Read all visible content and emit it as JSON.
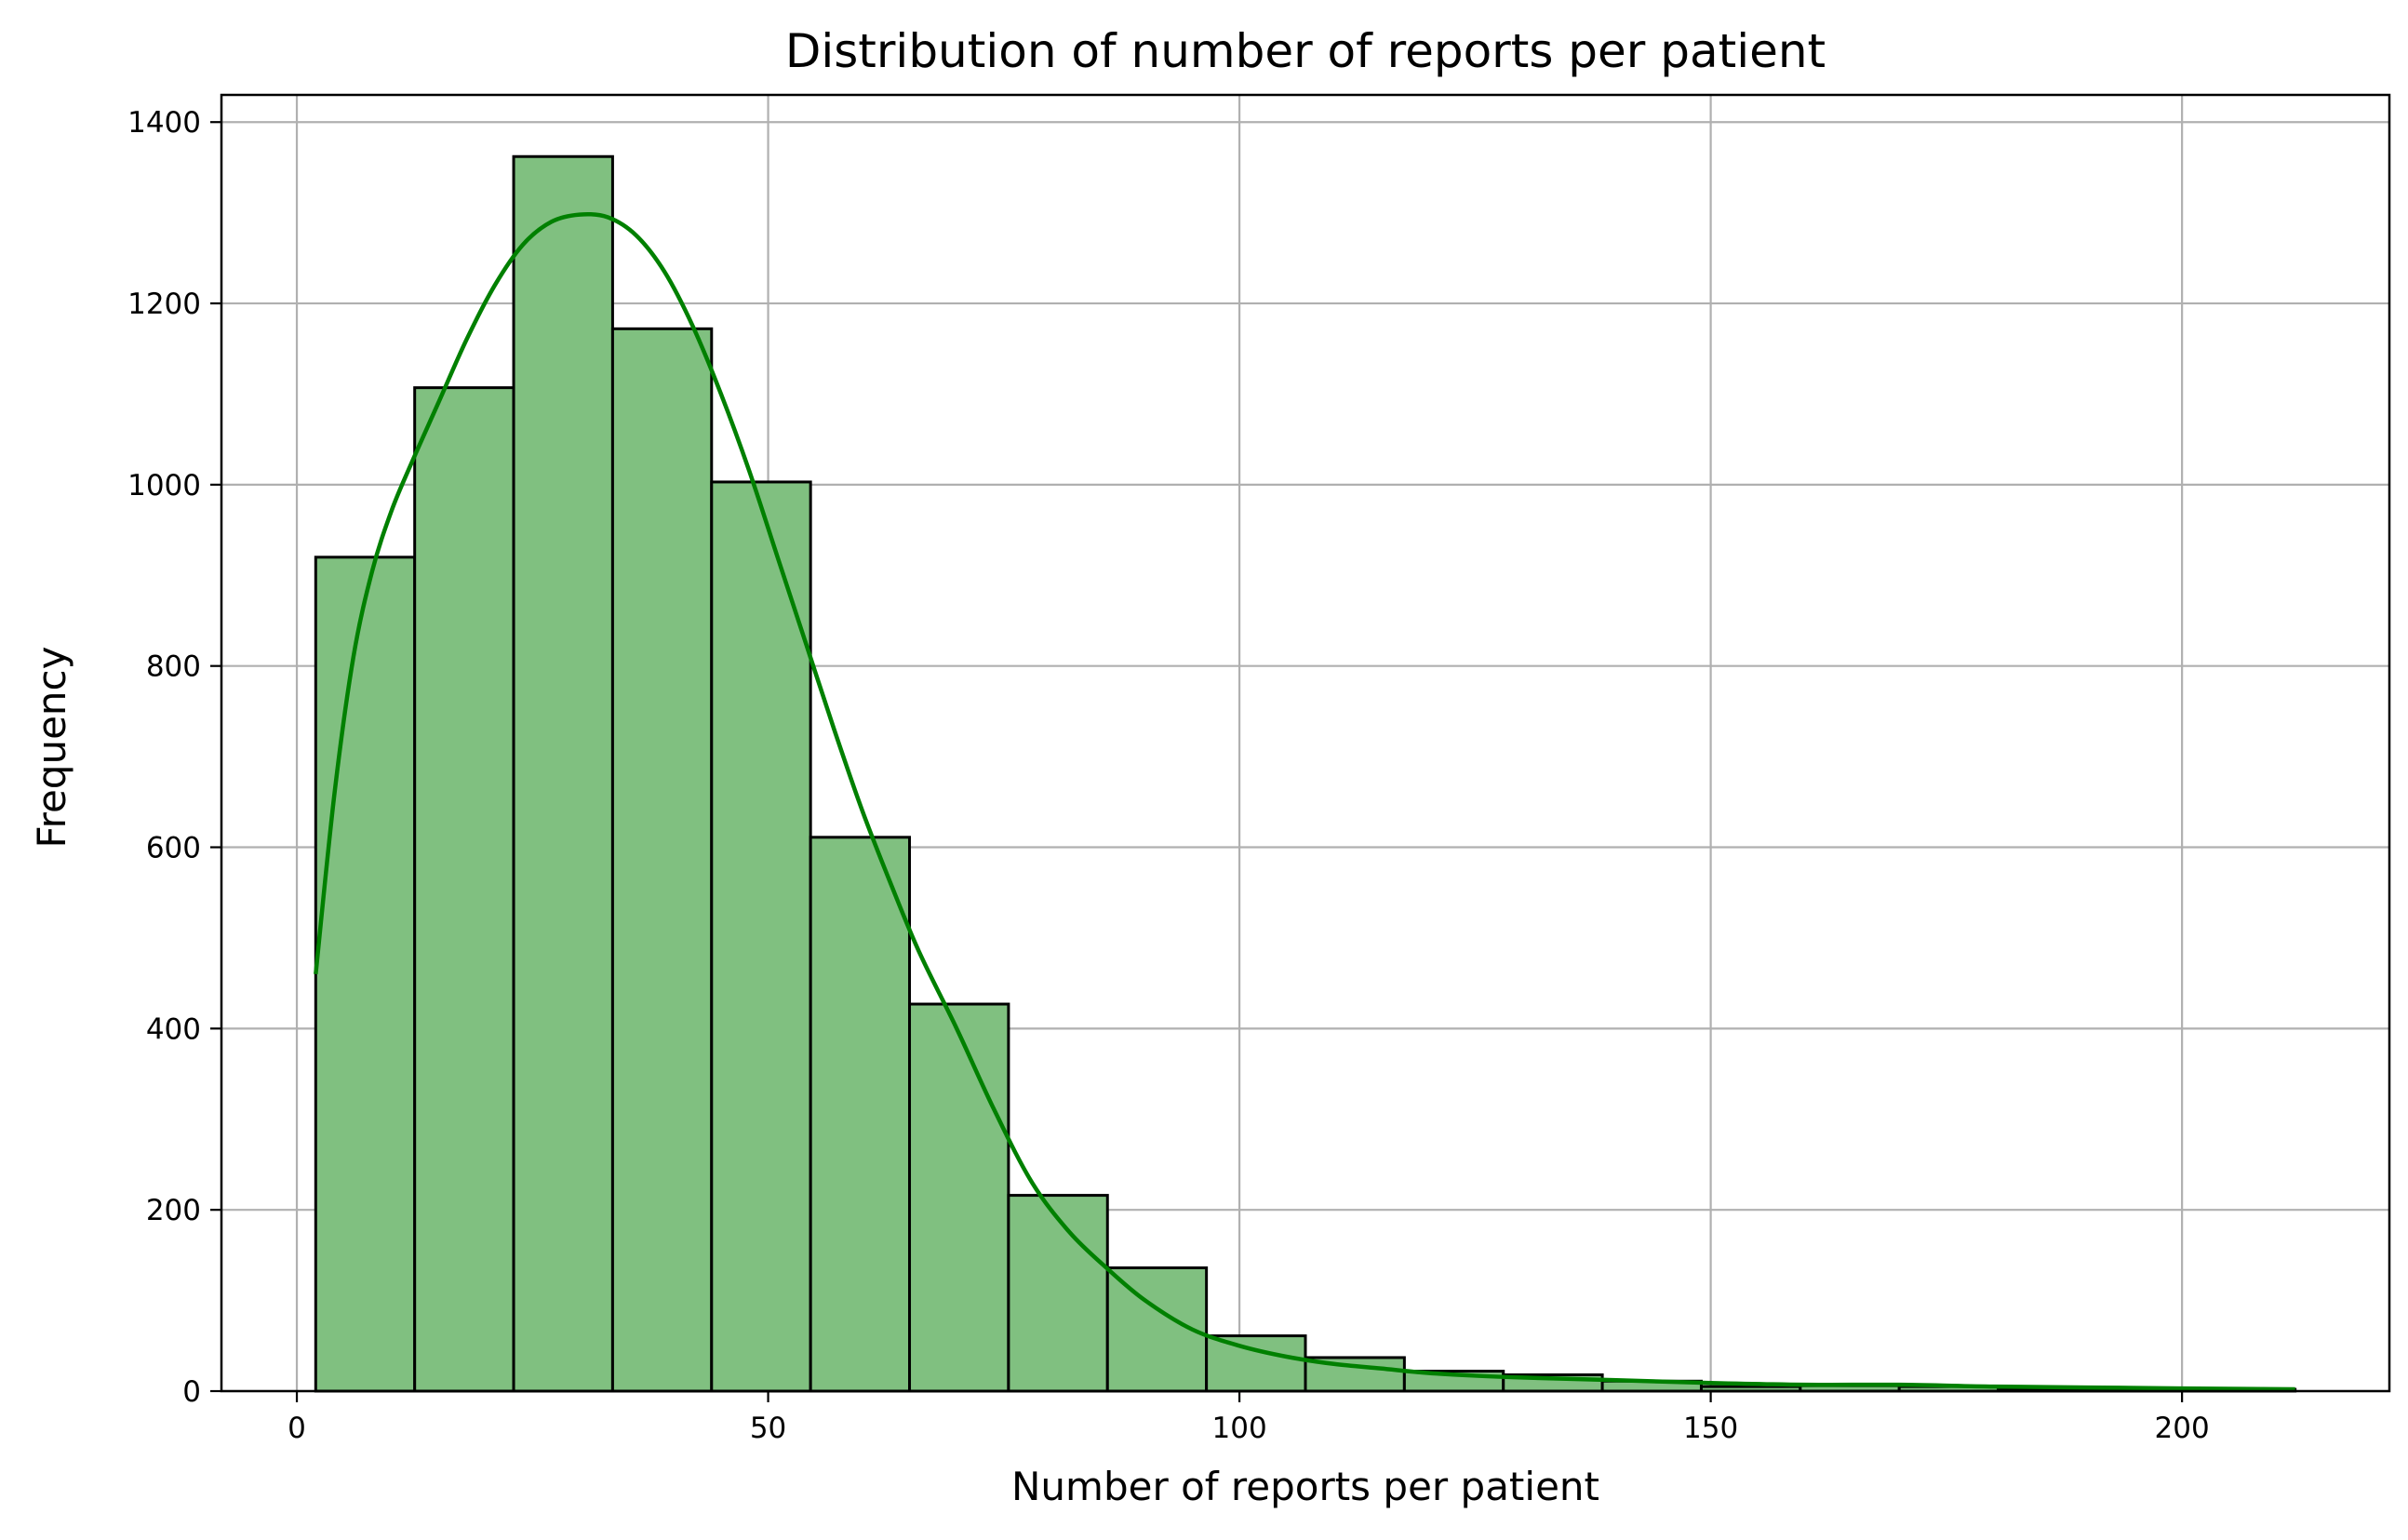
{
  "chart_data": {
    "type": "bar",
    "title": "Distribution of number of reports per patient",
    "xlabel": "Number of reports per patient",
    "ylabel": "Frequency",
    "xlim": [
      -8,
      222
    ],
    "ylim": [
      0,
      1430
    ],
    "x_ticks": [
      0,
      50,
      100,
      150,
      200
    ],
    "y_ticks": [
      0,
      200,
      400,
      600,
      800,
      1000,
      1200,
      1400
    ],
    "grid": true,
    "bars": [
      {
        "x0": 2.0,
        "x1": 12.5,
        "value": 920
      },
      {
        "x0": 12.5,
        "x1": 23.0,
        "value": 1107
      },
      {
        "x0": 23.0,
        "x1": 33.5,
        "value": 1362
      },
      {
        "x0": 33.5,
        "x1": 44.0,
        "value": 1172
      },
      {
        "x0": 44.0,
        "x1": 54.5,
        "value": 1003
      },
      {
        "x0": 54.5,
        "x1": 65.0,
        "value": 611
      },
      {
        "x0": 65.0,
        "x1": 75.5,
        "value": 427
      },
      {
        "x0": 75.5,
        "x1": 86.0,
        "value": 216
      },
      {
        "x0": 86.0,
        "x1": 96.5,
        "value": 136
      },
      {
        "x0": 96.5,
        "x1": 107.0,
        "value": 61
      },
      {
        "x0": 107.0,
        "x1": 117.5,
        "value": 37
      },
      {
        "x0": 117.5,
        "x1": 128.0,
        "value": 22
      },
      {
        "x0": 128.0,
        "x1": 138.5,
        "value": 18
      },
      {
        "x0": 138.5,
        "x1": 149.0,
        "value": 11
      },
      {
        "x0": 149.0,
        "x1": 159.5,
        "value": 5
      },
      {
        "x0": 159.5,
        "x1": 170.0,
        "value": 6
      },
      {
        "x0": 170.0,
        "x1": 180.5,
        "value": 5
      },
      {
        "x0": 180.5,
        "x1": 191.0,
        "value": 3
      },
      {
        "x0": 191.0,
        "x1": 201.5,
        "value": 2
      },
      {
        "x0": 201.5,
        "x1": 212.0,
        "value": 2
      }
    ],
    "kde": {
      "x": [
        2,
        4,
        6,
        8,
        10,
        12,
        15,
        18,
        21,
        24,
        27,
        30,
        33,
        36,
        39,
        42,
        45,
        48,
        51,
        54,
        57,
        60,
        63,
        66,
        70,
        74,
        78,
        82,
        86,
        90,
        95,
        100,
        105,
        110,
        115,
        120,
        125,
        130,
        140,
        150,
        160,
        170,
        180,
        190,
        200,
        212
      ],
      "y": [
        460,
        660,
        810,
        905,
        970,
        1020,
        1090,
        1160,
        1220,
        1265,
        1290,
        1298,
        1295,
        1275,
        1235,
        1175,
        1100,
        1015,
        920,
        825,
        730,
        640,
        560,
        485,
        400,
        310,
        230,
        175,
        135,
        100,
        68,
        50,
        38,
        30,
        25,
        20,
        17,
        15,
        12,
        9,
        7,
        7,
        5,
        4,
        3,
        2
      ]
    },
    "colors": {
      "bar_fill": "#80c080",
      "bar_edge": "#000000",
      "kde_line": "#008000",
      "grid": "#b0b0b0"
    }
  }
}
